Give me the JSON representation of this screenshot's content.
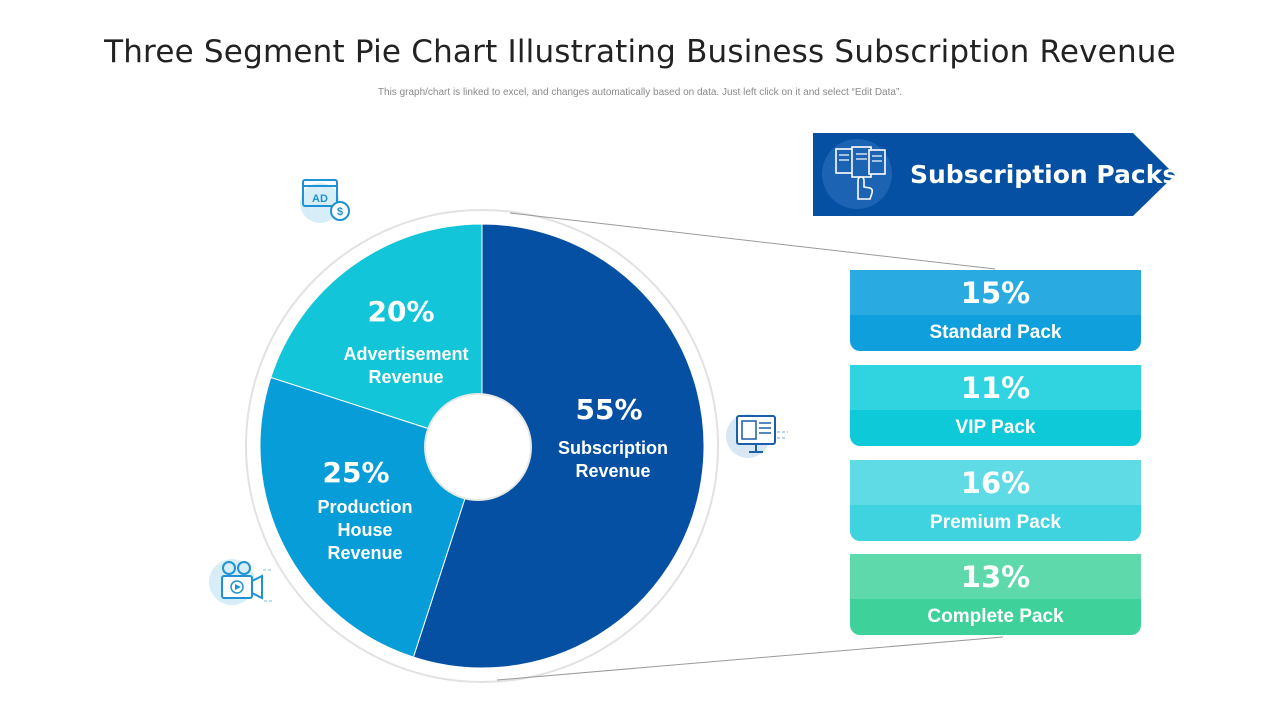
{
  "header": {
    "title": "Three Segment Pie Chart Illustrating Business Subscription Revenue",
    "subtitle": "This graph/chart is linked to excel,  and changes automatically based on data. Just left click on it and select “Edit Data”."
  },
  "chart_data": {
    "type": "pie",
    "slices": [
      {
        "label": "Subscription\nRevenue",
        "value": 55,
        "value_label": "55%",
        "color": "#0550a3"
      },
      {
        "label": "Production\nHouse\nRevenue",
        "value": 25,
        "value_label": "25%",
        "color": "#079dd9"
      },
      {
        "label": "Advertisement\nRevenue",
        "value": 20,
        "value_label": "20%",
        "color": "#12c5d8"
      }
    ]
  },
  "packs": {
    "banner_label": "Subscription Packs",
    "banner_color": "#0550a3",
    "items": [
      {
        "percent": "15%",
        "name": "Standard Pack",
        "top_color": "#29abe2",
        "bottom_color": "#0f9fdd"
      },
      {
        "percent": "11%",
        "name": "VIP Pack",
        "top_color": "#2fd4e0",
        "bottom_color": "#0ec9d8"
      },
      {
        "percent": "16%",
        "name": "Premium Pack",
        "top_color": "#5edbe5",
        "bottom_color": "#3fd2df"
      },
      {
        "percent": "13%",
        "name": "Complete Pack",
        "top_color": "#5ed9ab",
        "bottom_color": "#3fd19a"
      }
    ]
  },
  "icons": {
    "advertisement": "ad-dollar-icon",
    "subscription": "monitor-document-icon",
    "production": "video-camera-icon",
    "packs": "documents-touch-icon"
  }
}
